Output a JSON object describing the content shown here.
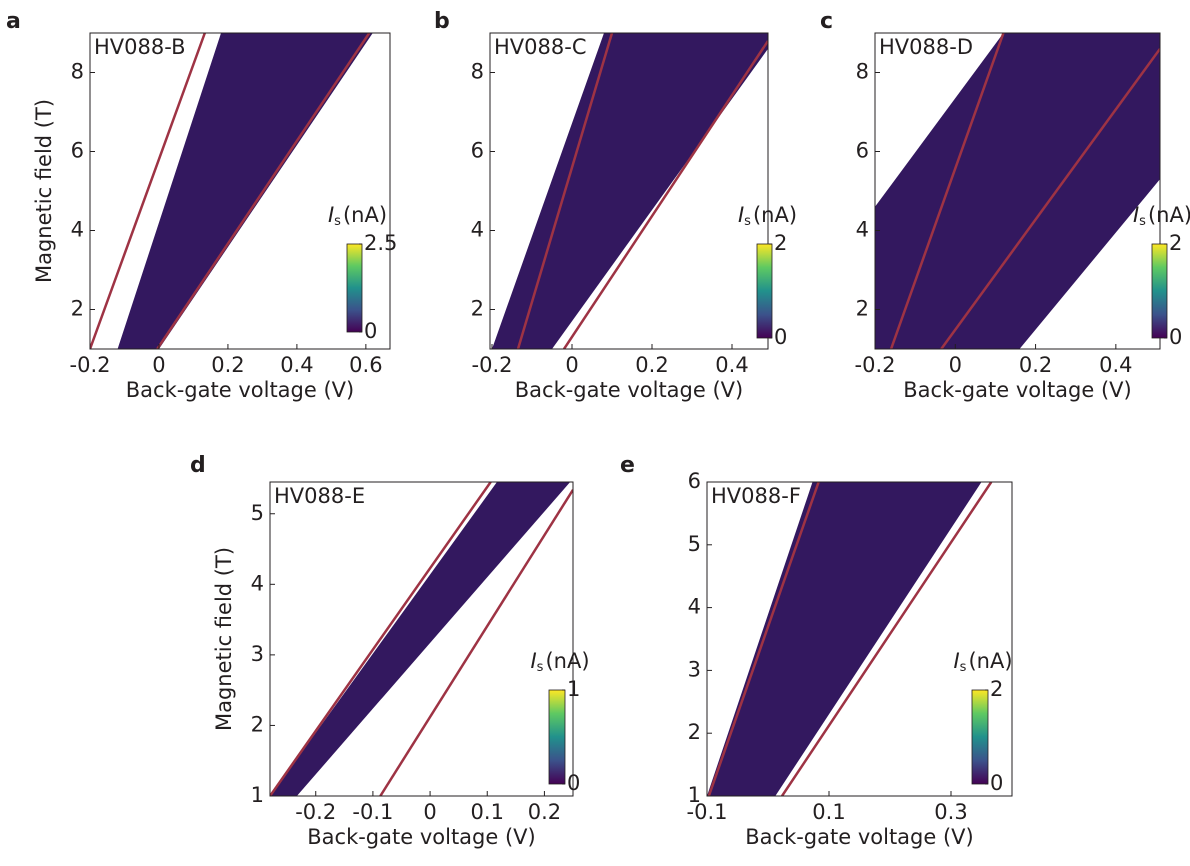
{
  "chart_data": [
    {
      "type": "heatmap",
      "panel": "a",
      "title": "HV088-B",
      "title_color": "#231f20",
      "xlabel": "Back-gate voltage (V)",
      "ylabel": "Magnetic field (T)",
      "xlim": [
        -0.2,
        0.67
      ],
      "ylim": [
        1,
        9
      ],
      "xticks": [
        -0.2,
        0,
        0.2,
        0.4,
        0.6
      ],
      "yticks": [
        2,
        4,
        6,
        8
      ],
      "region": [
        [
          -0.12,
          1
        ],
        [
          0.18,
          9
        ],
        [
          0.62,
          9
        ],
        [
          0.0,
          1
        ]
      ],
      "region_color": "#33185f",
      "lines": [
        [
          [
            -0.2,
            1
          ],
          [
            0.133,
            9
          ]
        ],
        [
          [
            -0.005,
            1
          ],
          [
            0.61,
            9
          ]
        ]
      ],
      "line_color": "#9e3344",
      "colorbar_symbol": "I",
      "colorbar_subscript": "s",
      "colorbar_unit": "(nA)",
      "clim": [
        0,
        2.5
      ],
      "cticks": [
        0,
        2.5
      ]
    },
    {
      "type": "heatmap",
      "panel": "b",
      "title": "HV088-C",
      "title_color": "#231f20",
      "xlabel": "Back-gate voltage (V)",
      "xlim": [
        -0.205,
        0.49
      ],
      "ylim": [
        1,
        9
      ],
      "xticks": [
        -0.2,
        0,
        0.2,
        0.4
      ],
      "yticks": [
        2,
        4,
        6,
        8
      ],
      "region": [
        [
          -0.2,
          1
        ],
        [
          0.08,
          9
        ],
        [
          0.49,
          9
        ],
        [
          0.49,
          8.6
        ],
        [
          -0.05,
          1
        ]
      ],
      "region_color": "#33185f",
      "lines": [
        [
          [
            -0.135,
            1
          ],
          [
            0.1,
            9
          ]
        ],
        [
          [
            -0.02,
            1
          ],
          [
            0.49,
            8.8
          ]
        ]
      ],
      "line_color": "#9e3344",
      "colorbar_symbol": "I",
      "colorbar_subscript": "s",
      "colorbar_unit": "(nA)",
      "clim": [
        0,
        2
      ],
      "cticks": [
        0,
        2
      ]
    },
    {
      "type": "heatmap",
      "panel": "c",
      "title": "HV088-D",
      "title_color": "#2a9d96",
      "xlabel": "Back-gate voltage (V)",
      "xlim": [
        -0.2,
        0.51
      ],
      "ylim": [
        1,
        9
      ],
      "xticks": [
        -0.2,
        0,
        0.2,
        0.4
      ],
      "yticks": [
        2,
        4,
        6,
        8
      ],
      "region": [
        [
          -0.2,
          1
        ],
        [
          -0.2,
          4.6
        ],
        [
          0.12,
          9
        ],
        [
          0.51,
          9
        ],
        [
          0.51,
          5.3
        ],
        [
          0.16,
          1
        ]
      ],
      "region_color": "#33185f",
      "lines": [
        [
          [
            -0.16,
            1
          ],
          [
            0.12,
            9
          ]
        ],
        [
          [
            -0.035,
            1
          ],
          [
            0.51,
            8.6
          ]
        ]
      ],
      "line_color": "#9e3344",
      "colorbar_symbol": "I",
      "colorbar_subscript": "s",
      "colorbar_unit": "(nA)",
      "clim": [
        0,
        2
      ],
      "cticks": [
        0,
        2
      ]
    },
    {
      "type": "heatmap",
      "panel": "d",
      "title": "HV088-E",
      "title_color": "#231f20",
      "xlabel": "Back-gate voltage (V)",
      "ylabel": "Magnetic field (T)",
      "xlim": [
        -0.28,
        0.25
      ],
      "ylim": [
        1,
        5.45
      ],
      "xticks": [
        -0.2,
        -0.1,
        0,
        0.1,
        0.2
      ],
      "yticks": [
        1,
        2,
        3,
        4,
        5
      ],
      "region": [
        [
          -0.28,
          1
        ],
        [
          0.117,
          5.45
        ],
        [
          0.245,
          5.45
        ],
        [
          -0.233,
          1
        ]
      ],
      "region_color": "#33185f",
      "lines": [
        [
          [
            -0.28,
            1
          ],
          [
            0.106,
            5.45
          ]
        ],
        [
          [
            -0.087,
            1
          ],
          [
            0.25,
            5.34
          ]
        ]
      ],
      "line_color": "#9e3344",
      "colorbar_symbol": "I",
      "colorbar_subscript": "s",
      "colorbar_unit": "(nA)",
      "clim": [
        0,
        1
      ],
      "cticks": [
        0,
        1
      ]
    },
    {
      "type": "heatmap",
      "panel": "e",
      "title": "HV088-F",
      "title_color": "#231f20",
      "xlabel": "Back-gate voltage (V)",
      "xlim": [
        -0.1,
        0.4
      ],
      "ylim": [
        1,
        6
      ],
      "xticks": [
        -0.1,
        0.1,
        0.3
      ],
      "yticks": [
        1,
        2,
        3,
        4,
        5,
        6
      ],
      "region": [
        [
          -0.1,
          1
        ],
        [
          0.073,
          6
        ],
        [
          0.35,
          6
        ],
        [
          0.012,
          1
        ]
      ],
      "region_color": "#33185f",
      "lines": [
        [
          [
            -0.097,
            1
          ],
          [
            0.083,
            6
          ]
        ],
        [
          [
            0.023,
            1
          ],
          [
            0.366,
            6
          ]
        ]
      ],
      "line_color": "#9e3344",
      "colorbar_symbol": "I",
      "colorbar_subscript": "s",
      "colorbar_unit": "(nA)",
      "clim": [
        0,
        2
      ],
      "cticks": [
        0,
        2
      ]
    }
  ]
}
